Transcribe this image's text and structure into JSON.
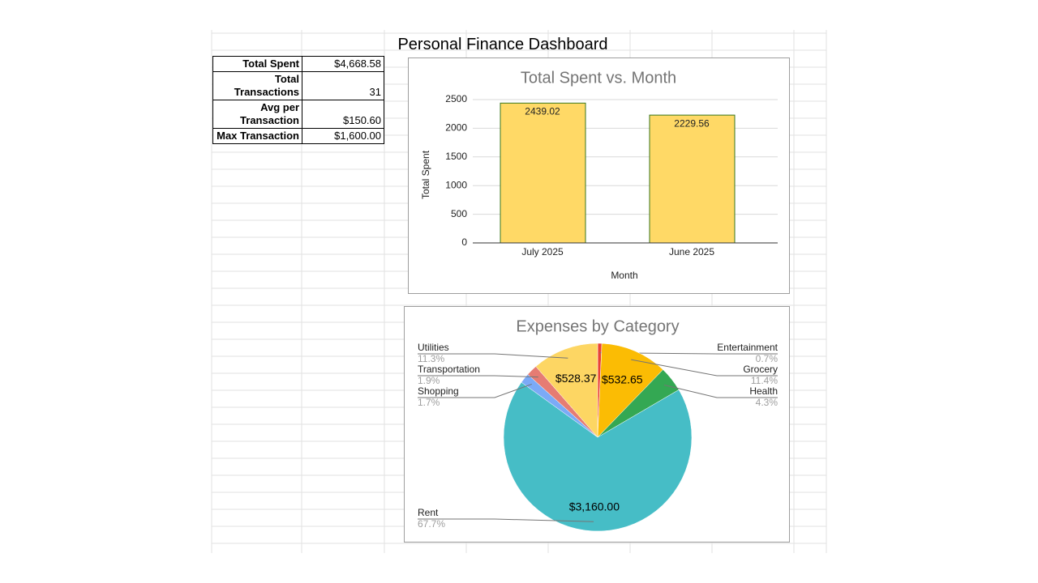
{
  "title": "Personal Finance Dashboard",
  "table": {
    "rows": [
      [
        "Total Spent",
        "$4,668.58"
      ],
      [
        "Total Transactions",
        "31"
      ],
      [
        "Avg per Transaction",
        "$150.60"
      ],
      [
        "Max Transaction",
        "$1,600.00"
      ]
    ]
  },
  "chart_data": [
    {
      "type": "bar",
      "title": "Total Spent vs. Month",
      "x_label": "Month",
      "y_label": "Total Spent",
      "categories": [
        "July 2025",
        "June 2025"
      ],
      "values": [
        2439.02,
        2229.56
      ],
      "color": "#ffd966",
      "edge_color": "#38761d",
      "ylim": [
        0,
        2500
      ],
      "yticks": [
        0,
        500,
        1000,
        1500,
        2000,
        2500
      ],
      "grid": true
    },
    {
      "type": "pie",
      "title": "Expenses by Category",
      "categories": [
        "Entertainment",
        "Grocery",
        "Health",
        "Rent",
        "Shopping",
        "Transportation",
        "Utilities"
      ],
      "values": [
        0.7,
        11.4,
        4.3,
        67.7,
        1.7,
        1.9,
        11.3
      ],
      "value_labels": [
        "0.7%",
        "11.4%",
        "4.3%",
        "67.7%",
        "1.7%",
        "1.9%",
        "11.3%"
      ],
      "amount_labels": [
        null,
        "$532.65",
        null,
        "$3,160.00",
        null,
        null,
        "$528.37"
      ],
      "colors": [
        "#ea4335",
        "#fbbc04",
        "#34a853",
        "#46bdc6",
        "#7baaf7",
        "#e67c73",
        "#fdd663"
      ]
    }
  ]
}
